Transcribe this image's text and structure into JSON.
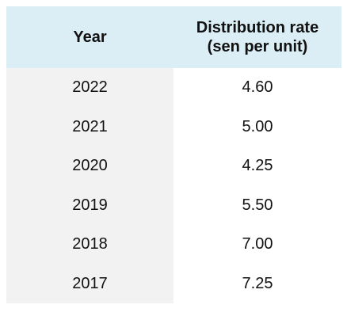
{
  "table": {
    "headers": {
      "year": "Year",
      "rate_line1": "Distribution rate",
      "rate_line2": "(sen per unit)"
    },
    "rows": [
      {
        "year": "2022",
        "rate": "4.60"
      },
      {
        "year": "2021",
        "rate": "5.00"
      },
      {
        "year": "2020",
        "rate": "4.25"
      },
      {
        "year": "2019",
        "rate": "5.50"
      },
      {
        "year": "2018",
        "rate": "7.00"
      },
      {
        "year": "2017",
        "rate": "7.25"
      }
    ]
  },
  "colors": {
    "header_bg": "#dbeef6",
    "year_col_bg": "#f2f2f2",
    "rate_col_bg": "#ffffff"
  }
}
